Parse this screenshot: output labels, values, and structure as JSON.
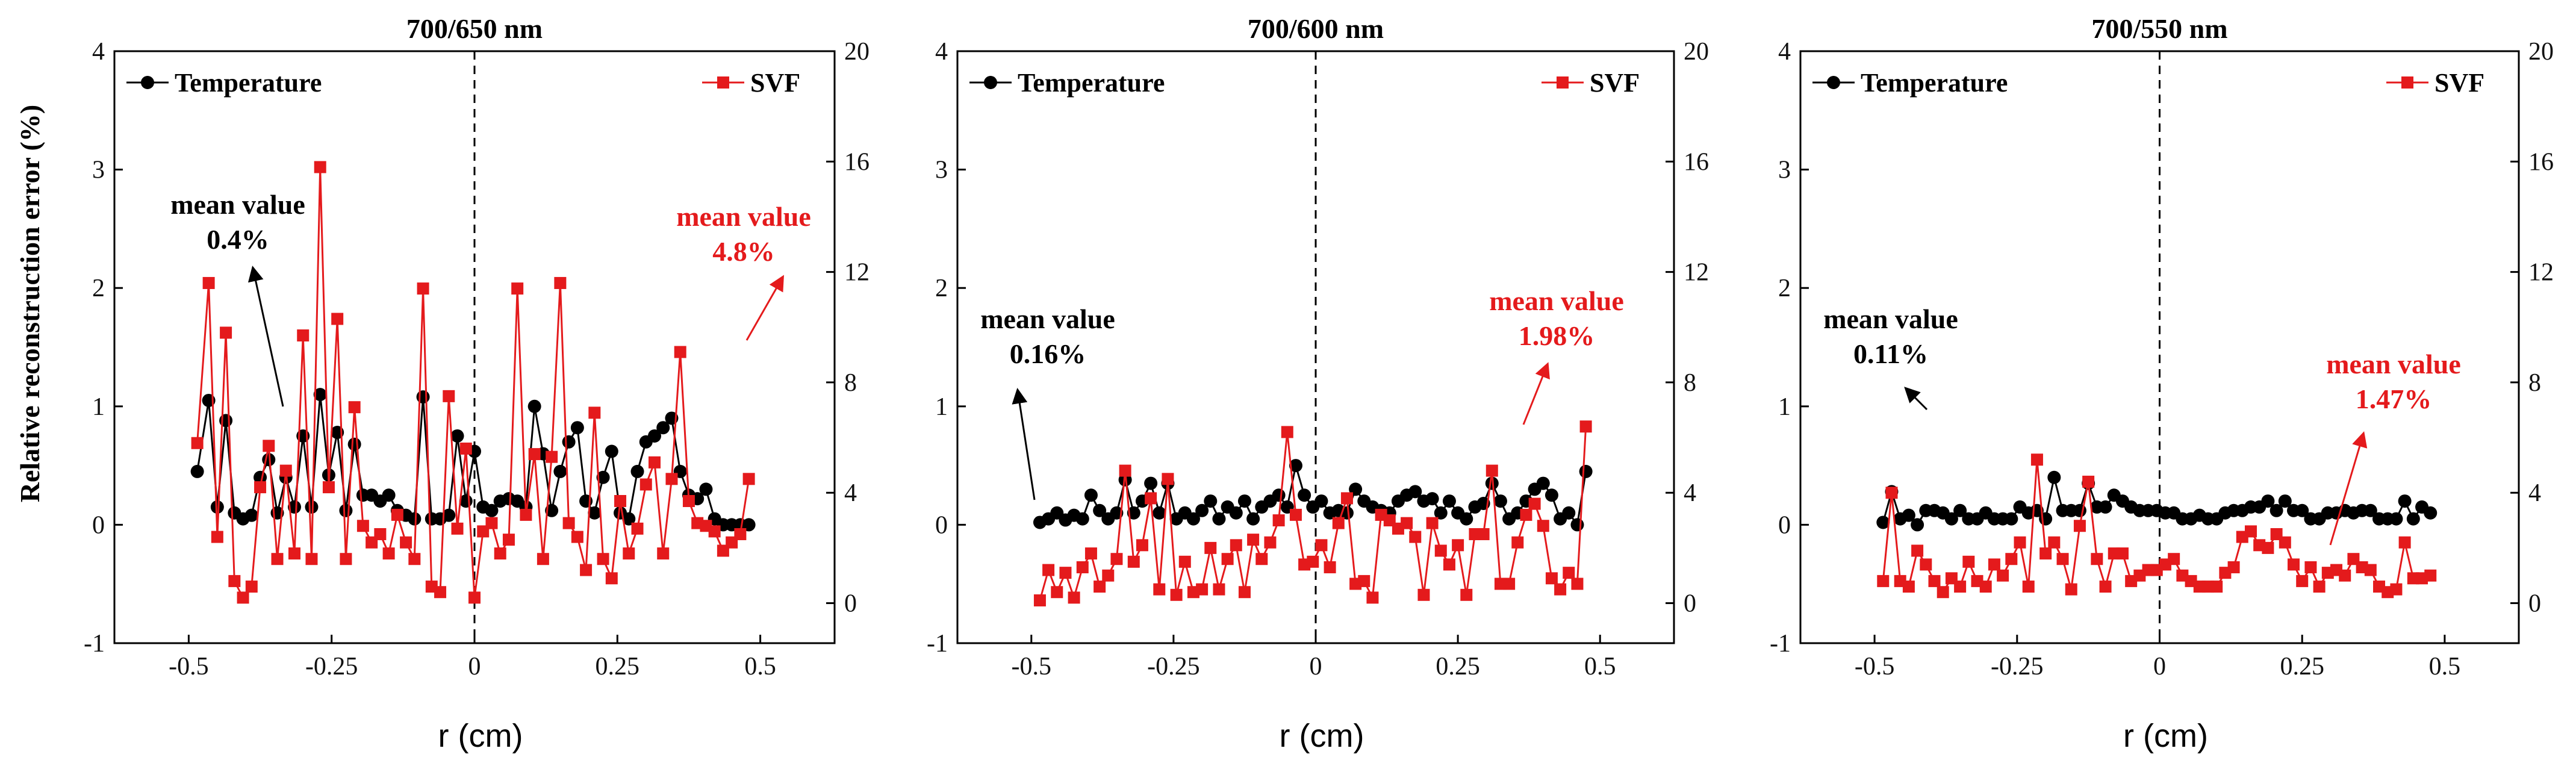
{
  "figure": {
    "ylabel": "Relative reconstruction error  (%)",
    "colors": {
      "temperature": "#000000",
      "svf": "#e41a1c"
    }
  },
  "chart_data": [
    {
      "type": "line",
      "title": "700/650 nm",
      "xlabel": "r (cm)",
      "ylabel": "Relative reconstruction error  (%)",
      "xlim": [
        -0.63,
        0.63
      ],
      "ylim": [
        -1,
        4
      ],
      "y2lim": [
        -1.45,
        20
      ],
      "xticks": [
        -0.5,
        -0.25,
        0,
        0.25,
        0.5
      ],
      "xtick_labels": [
        "-0.5",
        "-0.25",
        "0",
        "0.25",
        "0.5"
      ],
      "yticks": [
        -1,
        0,
        1,
        2,
        3,
        4
      ],
      "ytick_labels": [
        "-1",
        "0",
        "1",
        "2",
        "3",
        "4"
      ],
      "y2ticks": [
        0,
        4,
        8,
        12,
        16,
        20
      ],
      "y2tick_labels": [
        "0",
        "4",
        "8",
        "12",
        "16",
        "20"
      ],
      "legend": [
        "Temperature",
        "SVF"
      ],
      "x": [
        -0.485,
        -0.465,
        -0.45,
        -0.435,
        -0.42,
        -0.405,
        -0.39,
        -0.375,
        -0.36,
        -0.345,
        -0.33,
        -0.315,
        -0.3,
        -0.285,
        -0.27,
        -0.255,
        -0.24,
        -0.225,
        -0.21,
        -0.195,
        -0.18,
        -0.165,
        -0.15,
        -0.135,
        -0.12,
        -0.105,
        -0.09,
        -0.075,
        -0.06,
        -0.045,
        -0.03,
        -0.015,
        0.0,
        0.015,
        0.03,
        0.045,
        0.06,
        0.075,
        0.09,
        0.105,
        0.12,
        0.135,
        0.15,
        0.165,
        0.18,
        0.195,
        0.21,
        0.225,
        0.24,
        0.255,
        0.27,
        0.285,
        0.3,
        0.315,
        0.33,
        0.345,
        0.36,
        0.375,
        0.39,
        0.405,
        0.42,
        0.435,
        0.45,
        0.465,
        0.48
      ],
      "series": [
        {
          "name": "Temperature",
          "axis": "left",
          "values": [
            0.45,
            1.05,
            0.15,
            0.88,
            0.1,
            0.05,
            0.08,
            0.4,
            0.55,
            0.1,
            0.4,
            0.15,
            0.75,
            0.15,
            1.1,
            0.42,
            0.78,
            0.12,
            0.68,
            0.25,
            0.25,
            0.2,
            0.25,
            0.12,
            0.08,
            0.05,
            1.08,
            0.05,
            0.05,
            0.08,
            0.75,
            0.2,
            0.62,
            0.15,
            0.12,
            0.2,
            0.22,
            0.2,
            0.15,
            1.0,
            0.6,
            0.12,
            0.45,
            0.7,
            0.82,
            0.2,
            0.1,
            0.4,
            0.62,
            0.1,
            0.05,
            0.45,
            0.7,
            0.75,
            0.82,
            0.9,
            0.45,
            0.25,
            0.22,
            0.3,
            0.05,
            0.0,
            0.0,
            0.0,
            0.0
          ]
        },
        {
          "name": "SVF",
          "axis": "right",
          "values": [
            5.8,
            11.6,
            2.4,
            9.8,
            0.8,
            0.2,
            0.6,
            4.2,
            5.7,
            1.6,
            4.8,
            1.8,
            9.7,
            1.6,
            15.8,
            4.2,
            10.3,
            1.6,
            7.1,
            2.8,
            2.2,
            2.5,
            1.8,
            3.2,
            2.2,
            1.6,
            11.4,
            0.6,
            0.4,
            7.5,
            2.7,
            5.6,
            0.2,
            2.6,
            2.9,
            1.8,
            2.3,
            11.4,
            3.2,
            5.4,
            1.6,
            5.3,
            11.6,
            2.9,
            2.4,
            1.2,
            6.9,
            1.6,
            0.9,
            3.7,
            1.8,
            2.7,
            4.3,
            5.1,
            1.8,
            4.5,
            9.1,
            3.7,
            2.9,
            2.8,
            2.6,
            1.9,
            2.2,
            2.5,
            4.5
          ]
        }
      ],
      "annotations": [
        {
          "lines": [
            "mean value",
            "0.4%"
          ],
          "color": "black",
          "value": "0.4%"
        },
        {
          "lines": [
            "mean value",
            "4.8%"
          ],
          "color": "red",
          "value": "4.8%"
        }
      ]
    },
    {
      "type": "line",
      "title": "700/600 nm",
      "xlabel": "r (cm)",
      "xlim": [
        -0.63,
        0.63
      ],
      "ylim": [
        -1,
        4
      ],
      "y2lim": [
        -1.45,
        20
      ],
      "xticks": [
        -0.5,
        -0.25,
        0,
        0.25,
        0.5
      ],
      "xtick_labels": [
        "-0.5",
        "-0.25",
        "0",
        "0.25",
        "0.5"
      ],
      "yticks": [
        -1,
        0,
        1,
        2,
        3,
        4
      ],
      "ytick_labels": [
        "-1",
        "0",
        "1",
        "2",
        "3",
        "4"
      ],
      "y2ticks": [
        0,
        4,
        8,
        12,
        16,
        20
      ],
      "y2tick_labels": [
        "0",
        "4",
        "8",
        "12",
        "16",
        "20"
      ],
      "legend": [
        "Temperature",
        "SVF"
      ],
      "x": [
        -0.485,
        -0.47,
        -0.455,
        -0.44,
        -0.425,
        -0.41,
        -0.395,
        -0.38,
        -0.365,
        -0.35,
        -0.335,
        -0.32,
        -0.305,
        -0.29,
        -0.275,
        -0.26,
        -0.245,
        -0.23,
        -0.215,
        -0.2,
        -0.185,
        -0.17,
        -0.155,
        -0.14,
        -0.125,
        -0.11,
        -0.095,
        -0.08,
        -0.065,
        -0.05,
        -0.035,
        -0.02,
        -0.005,
        0.01,
        0.025,
        0.04,
        0.055,
        0.07,
        0.085,
        0.1,
        0.115,
        0.13,
        0.145,
        0.16,
        0.175,
        0.19,
        0.205,
        0.22,
        0.235,
        0.25,
        0.265,
        0.28,
        0.295,
        0.31,
        0.325,
        0.34,
        0.355,
        0.37,
        0.385,
        0.4,
        0.415,
        0.43,
        0.445,
        0.46,
        0.475
      ],
      "series": [
        {
          "name": "Temperature",
          "axis": "left",
          "values": [
            0.02,
            0.05,
            0.1,
            0.04,
            0.08,
            0.05,
            0.25,
            0.12,
            0.05,
            0.1,
            0.38,
            0.1,
            0.2,
            0.35,
            0.1,
            0.35,
            0.05,
            0.1,
            0.05,
            0.12,
            0.2,
            0.05,
            0.15,
            0.1,
            0.2,
            0.05,
            0.15,
            0.2,
            0.25,
            0.15,
            0.5,
            0.25,
            0.15,
            0.2,
            0.1,
            0.12,
            0.1,
            0.3,
            0.2,
            0.15,
            0.12,
            0.1,
            0.2,
            0.25,
            0.28,
            0.2,
            0.22,
            0.1,
            0.2,
            0.1,
            0.05,
            0.15,
            0.18,
            0.35,
            0.2,
            0.05,
            0.1,
            0.2,
            0.3,
            0.35,
            0.25,
            0.05,
            0.1,
            0.0,
            0.45
          ]
        },
        {
          "name": "SVF",
          "axis": "right",
          "values": [
            0.1,
            1.2,
            0.4,
            1.1,
            0.2,
            1.3,
            1.8,
            0.6,
            1.0,
            1.6,
            4.8,
            1.5,
            2.1,
            3.8,
            0.5,
            4.5,
            0.3,
            1.5,
            0.4,
            0.5,
            2.0,
            0.5,
            1.6,
            2.1,
            0.4,
            2.3,
            1.6,
            2.2,
            3.0,
            6.2,
            3.2,
            1.4,
            1.5,
            2.1,
            1.3,
            2.9,
            3.8,
            0.7,
            0.8,
            0.2,
            3.2,
            3.0,
            2.7,
            2.9,
            2.4,
            0.3,
            2.9,
            1.9,
            1.4,
            2.1,
            0.3,
            2.5,
            2.5,
            4.8,
            0.7,
            0.7,
            2.2,
            3.2,
            3.6,
            2.8,
            0.9,
            0.5,
            1.1,
            0.7,
            6.4
          ]
        }
      ],
      "annotations": [
        {
          "lines": [
            "mean value",
            "0.16%"
          ],
          "color": "black",
          "value": "0.16%"
        },
        {
          "lines": [
            "mean value",
            "1.98%"
          ],
          "color": "red",
          "value": "1.98%"
        }
      ]
    },
    {
      "type": "line",
      "title": "700/550 nm",
      "xlabel": "r (cm)",
      "xlim": [
        -0.63,
        0.63
      ],
      "ylim": [
        -1,
        4
      ],
      "y2lim": [
        -1.45,
        20
      ],
      "xticks": [
        -0.5,
        -0.25,
        0,
        0.25,
        0.5
      ],
      "xtick_labels": [
        "-0.5",
        "-0.25",
        "0",
        "0.25",
        "0.5"
      ],
      "yticks": [
        -1,
        0,
        1,
        2,
        3,
        4
      ],
      "ytick_labels": [
        "-1",
        "0",
        "1",
        "2",
        "3",
        "4"
      ],
      "y2ticks": [
        0,
        4,
        8,
        12,
        16,
        20
      ],
      "y2tick_labels": [
        "0",
        "4",
        "8",
        "12",
        "16",
        "20"
      ],
      "legend": [
        "Temperature",
        "SVF"
      ],
      "x": [
        -0.485,
        -0.47,
        -0.455,
        -0.44,
        -0.425,
        -0.41,
        -0.395,
        -0.38,
        -0.365,
        -0.35,
        -0.335,
        -0.32,
        -0.305,
        -0.29,
        -0.275,
        -0.26,
        -0.245,
        -0.23,
        -0.215,
        -0.2,
        -0.185,
        -0.17,
        -0.155,
        -0.14,
        -0.125,
        -0.11,
        -0.095,
        -0.08,
        -0.065,
        -0.05,
        -0.035,
        -0.02,
        -0.005,
        0.01,
        0.025,
        0.04,
        0.055,
        0.07,
        0.085,
        0.1,
        0.115,
        0.13,
        0.145,
        0.16,
        0.175,
        0.19,
        0.205,
        0.22,
        0.235,
        0.25,
        0.265,
        0.28,
        0.295,
        0.31,
        0.325,
        0.34,
        0.355,
        0.37,
        0.385,
        0.4,
        0.415,
        0.43,
        0.445,
        0.46,
        0.475
      ],
      "series": [
        {
          "name": "Temperature",
          "axis": "left",
          "values": [
            0.02,
            0.28,
            0.05,
            0.08,
            0.0,
            0.12,
            0.12,
            0.1,
            0.05,
            0.12,
            0.05,
            0.05,
            0.1,
            0.05,
            0.05,
            0.05,
            0.15,
            0.1,
            0.12,
            0.05,
            0.4,
            0.12,
            0.12,
            0.12,
            0.35,
            0.15,
            0.15,
            0.25,
            0.2,
            0.15,
            0.12,
            0.12,
            0.12,
            0.1,
            0.1,
            0.05,
            0.05,
            0.08,
            0.05,
            0.05,
            0.1,
            0.12,
            0.12,
            0.15,
            0.15,
            0.2,
            0.12,
            0.2,
            0.12,
            0.12,
            0.05,
            0.05,
            0.1,
            0.1,
            0.12,
            0.1,
            0.12,
            0.12,
            0.05,
            0.05,
            0.05,
            0.2,
            0.05,
            0.15,
            0.1
          ]
        },
        {
          "name": "SVF",
          "axis": "right",
          "values": [
            0.8,
            4.0,
            0.8,
            0.6,
            1.9,
            1.4,
            0.8,
            0.4,
            0.9,
            0.6,
            1.5,
            0.8,
            0.6,
            1.4,
            1.0,
            1.6,
            2.2,
            0.6,
            5.2,
            1.8,
            2.2,
            1.6,
            0.5,
            2.8,
            4.4,
            1.6,
            0.6,
            1.8,
            1.8,
            0.8,
            1.0,
            1.2,
            1.2,
            1.4,
            1.6,
            1.0,
            0.8,
            0.6,
            0.6,
            0.6,
            1.1,
            1.3,
            2.4,
            2.6,
            2.1,
            2.0,
            2.5,
            2.2,
            1.4,
            0.8,
            1.3,
            0.6,
            1.1,
            1.2,
            1.0,
            1.6,
            1.3,
            1.2,
            0.6,
            0.4,
            0.5,
            2.2,
            0.9,
            0.9,
            1.0
          ]
        }
      ],
      "annotations": [
        {
          "lines": [
            "mean value",
            "0.11%"
          ],
          "color": "black",
          "value": "0.11%"
        },
        {
          "lines": [
            "mean value",
            "1.47%"
          ],
          "color": "red",
          "value": "1.47%"
        }
      ]
    }
  ]
}
